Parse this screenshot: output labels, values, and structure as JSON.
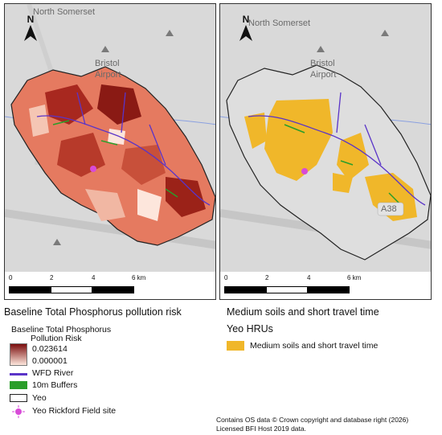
{
  "left_map": {
    "places": [
      "North Somerset",
      "Bristol",
      "Airport"
    ],
    "north_label": "N",
    "scale_ticks": [
      "0",
      "2",
      "4",
      "6 km"
    ]
  },
  "right_map": {
    "places": [
      "North Somerset",
      "Bristol",
      "Airport",
      "A38"
    ],
    "north_label": "N",
    "scale_ticks": [
      "0",
      "2",
      "4",
      "6 km"
    ]
  },
  "left_legend": {
    "title": "Baseline Total Phosphorus pollution risk",
    "ramp_title_1": "Baseline Total Phosphorus",
    "ramp_title_2": "Pollution Risk",
    "ramp_max": "0.023614",
    "ramp_min": "0.000001",
    "items": [
      "WFD River",
      "10m Buffers",
      "Yeo",
      "Yeo Rickford Field site"
    ]
  },
  "right_legend": {
    "title": "Medium soils and short travel time",
    "subtitle": "Yeo HRUs",
    "item": "Medium soils and short travel time"
  },
  "credit": {
    "line1": "Contains OS data © Crown copyright and database right (2026)",
    "line2": "Licensed BFI Host 2019 data."
  },
  "colors": {
    "risk_high": "#7a0d0d",
    "risk_low": "#fde6dc",
    "river": "#5a34c8",
    "buffer": "#2a9e2a",
    "hru": "#f0b72a",
    "field_site": "#d84bd8",
    "basemap": "#d9d9d9"
  }
}
